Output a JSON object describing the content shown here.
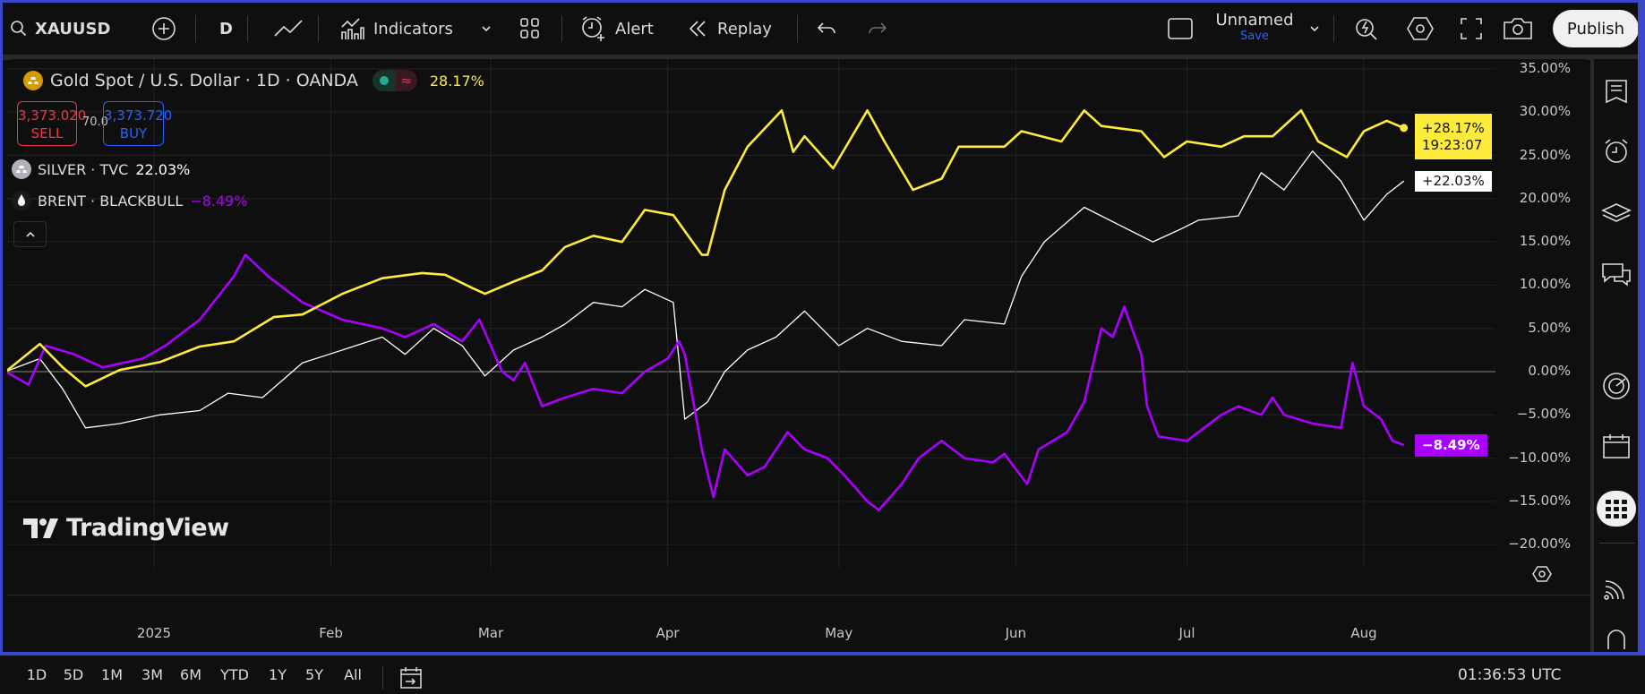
{
  "toolbar": {
    "symbol": "XAUUSD",
    "interval": "D",
    "indicators_label": "Indicators",
    "alert_label": "Alert",
    "replay_label": "Replay",
    "layout_name": "Unnamed",
    "save_label": "Save",
    "publish_label": "Publish"
  },
  "legend": {
    "main_title": "Gold Spot / U.S. Dollar · 1D · OANDA",
    "main_change": "28.17%",
    "sell_price": "3,373.020",
    "sell_label": "SELL",
    "spread": "70.0",
    "buy_price": "3,373.720",
    "buy_label": "BUY",
    "series2_name": "SILVER · TVC",
    "series2_change": "22.03%",
    "series3_name": "BRENT · BLACKBULL",
    "series3_change": "−8.49%"
  },
  "watermark": "TradingView",
  "price_labels": {
    "gold": "+28.17%",
    "gold_countdown": "19:23:07",
    "silver": "+22.03%",
    "brent": "−8.49%"
  },
  "bottom_bar": {
    "ranges": [
      "1D",
      "5D",
      "1M",
      "3M",
      "6M",
      "YTD",
      "1Y",
      "5Y",
      "All"
    ],
    "clock": "01:36:53 UTC"
  },
  "colors": {
    "gold": "#ffeb3b",
    "silver": "#ffffff",
    "brent": "#aa00ff",
    "sell": "#f23645",
    "buy": "#2962ff",
    "accent_frame": "#3b47c9"
  },
  "chart_data": {
    "type": "line",
    "y_unit": "%",
    "ylim": [
      -20,
      35
    ],
    "y_ticks": [
      "35.00%",
      "30.00%",
      "25.00%",
      "20.00%",
      "15.00%",
      "10.00%",
      "5.00%",
      "0.00%",
      "−5.00%",
      "−10.00%",
      "−15.00%",
      "−20.00%"
    ],
    "y_tick_values": [
      35,
      30,
      25,
      20,
      15,
      10,
      5,
      0,
      -5,
      -10,
      -15,
      -20
    ],
    "x_ticks": [
      {
        "label": "2025",
        "date": "2025-01-01"
      },
      {
        "label": "Feb",
        "date": "2025-02-01"
      },
      {
        "label": "Mar",
        "date": "2025-03-01"
      },
      {
        "label": "Apr",
        "date": "2025-04-01"
      },
      {
        "label": "May",
        "date": "2025-05-01"
      },
      {
        "label": "Jun",
        "date": "2025-06-01"
      },
      {
        "label": "Jul",
        "date": "2025-07-01"
      },
      {
        "label": "Aug",
        "date": "2025-08-01"
      }
    ],
    "grid": true,
    "series": [
      {
        "name": "Gold Spot / U.S. Dollar · 1D · OANDA",
        "key": "gold",
        "points": [
          [
            "2024-12-06",
            0
          ],
          [
            "2024-12-12",
            3.2
          ],
          [
            "2024-12-16",
            0.5
          ],
          [
            "2024-12-20",
            -1.7
          ],
          [
            "2024-12-26",
            0.2
          ],
          [
            "2025-01-02",
            1.1
          ],
          [
            "2025-01-09",
            2.9
          ],
          [
            "2025-01-15",
            3.5
          ],
          [
            "2025-01-22",
            6.3
          ],
          [
            "2025-01-27",
            6.6
          ],
          [
            "2025-02-03",
            9.0
          ],
          [
            "2025-02-10",
            10.8
          ],
          [
            "2025-02-17",
            11.4
          ],
          [
            "2025-02-21",
            11.2
          ],
          [
            "2025-02-26",
            9.6
          ],
          [
            "2025-02-28",
            9.0
          ],
          [
            "2025-03-05",
            10.4
          ],
          [
            "2025-03-10",
            11.7
          ],
          [
            "2025-03-14",
            14.4
          ],
          [
            "2025-03-19",
            15.7
          ],
          [
            "2025-03-24",
            15.0
          ],
          [
            "2025-03-28",
            18.7
          ],
          [
            "2025-04-02",
            18.1
          ],
          [
            "2025-04-07",
            13.5
          ],
          [
            "2025-04-08",
            13.5
          ],
          [
            "2025-04-11",
            21.0
          ],
          [
            "2025-04-15",
            26.0
          ],
          [
            "2025-04-21",
            30.2
          ],
          [
            "2025-04-23",
            25.4
          ],
          [
            "2025-04-25",
            27.2
          ],
          [
            "2025-04-30",
            23.5
          ],
          [
            "2025-05-06",
            30.2
          ],
          [
            "2025-05-09",
            26.6
          ],
          [
            "2025-05-14",
            21.0
          ],
          [
            "2025-05-19",
            22.3
          ],
          [
            "2025-05-22",
            26.0
          ],
          [
            "2025-05-27",
            26.0
          ],
          [
            "2025-05-30",
            26.0
          ],
          [
            "2025-06-02",
            27.8
          ],
          [
            "2025-06-09",
            26.6
          ],
          [
            "2025-06-13",
            30.2
          ],
          [
            "2025-06-16",
            28.4
          ],
          [
            "2025-06-23",
            27.8
          ],
          [
            "2025-06-27",
            24.8
          ],
          [
            "2025-07-01",
            26.6
          ],
          [
            "2025-07-07",
            26.0
          ],
          [
            "2025-07-11",
            27.2
          ],
          [
            "2025-07-16",
            27.2
          ],
          [
            "2025-07-21",
            30.2
          ],
          [
            "2025-07-24",
            26.6
          ],
          [
            "2025-07-29",
            24.8
          ],
          [
            "2025-08-01",
            27.8
          ],
          [
            "2025-08-05",
            29.0
          ],
          [
            "2025-08-08",
            28.17
          ]
        ]
      },
      {
        "name": "SILVER · TVC",
        "key": "silver",
        "points": [
          [
            "2024-12-06",
            0
          ],
          [
            "2024-12-12",
            1.5
          ],
          [
            "2024-12-16",
            -2.0
          ],
          [
            "2024-12-20",
            -6.5
          ],
          [
            "2024-12-26",
            -6.0
          ],
          [
            "2025-01-02",
            -5.0
          ],
          [
            "2025-01-09",
            -4.5
          ],
          [
            "2025-01-14",
            -2.5
          ],
          [
            "2025-01-20",
            -3.0
          ],
          [
            "2025-01-27",
            1.0
          ],
          [
            "2025-02-03",
            2.5
          ],
          [
            "2025-02-10",
            4.0
          ],
          [
            "2025-02-14",
            2.0
          ],
          [
            "2025-02-19",
            5.0
          ],
          [
            "2025-02-24",
            3.0
          ],
          [
            "2025-02-28",
            -0.5
          ],
          [
            "2025-03-05",
            2.5
          ],
          [
            "2025-03-10",
            4.0
          ],
          [
            "2025-03-14",
            5.5
          ],
          [
            "2025-03-19",
            8.0
          ],
          [
            "2025-03-24",
            7.5
          ],
          [
            "2025-03-28",
            9.5
          ],
          [
            "2025-04-02",
            8.0
          ],
          [
            "2025-04-04",
            -5.5
          ],
          [
            "2025-04-08",
            -3.5
          ],
          [
            "2025-04-11",
            0
          ],
          [
            "2025-04-15",
            2.5
          ],
          [
            "2025-04-20",
            4.0
          ],
          [
            "2025-04-25",
            7.0
          ],
          [
            "2025-05-01",
            3.0
          ],
          [
            "2025-05-06",
            5.0
          ],
          [
            "2025-05-12",
            3.5
          ],
          [
            "2025-05-19",
            3.0
          ],
          [
            "2025-05-23",
            6.0
          ],
          [
            "2025-05-30",
            5.5
          ],
          [
            "2025-06-02",
            11.0
          ],
          [
            "2025-06-06",
            15.0
          ],
          [
            "2025-06-13",
            19.0
          ],
          [
            "2025-06-19",
            17.0
          ],
          [
            "2025-06-25",
            15.0
          ],
          [
            "2025-06-30",
            16.5
          ],
          [
            "2025-07-03",
            17.5
          ],
          [
            "2025-07-10",
            18.0
          ],
          [
            "2025-07-14",
            23.0
          ],
          [
            "2025-07-18",
            21.0
          ],
          [
            "2025-07-23",
            25.5
          ],
          [
            "2025-07-28",
            22.0
          ],
          [
            "2025-08-01",
            17.5
          ],
          [
            "2025-08-05",
            20.5
          ],
          [
            "2025-08-08",
            22.03
          ]
        ]
      },
      {
        "name": "BRENT · BLACKBULL",
        "key": "brent",
        "points": [
          [
            "2024-12-06",
            0
          ],
          [
            "2024-12-10",
            -1.5
          ],
          [
            "2024-12-13",
            3.0
          ],
          [
            "2024-12-18",
            2.0
          ],
          [
            "2024-12-23",
            0.5
          ],
          [
            "2024-12-30",
            1.5
          ],
          [
            "2025-01-03",
            3.0
          ],
          [
            "2025-01-09",
            6.0
          ],
          [
            "2025-01-15",
            11.0
          ],
          [
            "2025-01-17",
            13.5
          ],
          [
            "2025-01-21",
            11.0
          ],
          [
            "2025-01-27",
            8.0
          ],
          [
            "2025-02-03",
            6.0
          ],
          [
            "2025-02-10",
            5.0
          ],
          [
            "2025-02-14",
            4.0
          ],
          [
            "2025-02-19",
            5.5
          ],
          [
            "2025-02-24",
            3.5
          ],
          [
            "2025-02-27",
            6.0
          ],
          [
            "2025-03-03",
            0
          ],
          [
            "2025-03-05",
            -1.0
          ],
          [
            "2025-03-07",
            1.0
          ],
          [
            "2025-03-10",
            -4.0
          ],
          [
            "2025-03-14",
            -3.0
          ],
          [
            "2025-03-19",
            -2.0
          ],
          [
            "2025-03-24",
            -2.5
          ],
          [
            "2025-03-28",
            0
          ],
          [
            "2025-04-01",
            1.5
          ],
          [
            "2025-04-03",
            3.5
          ],
          [
            "2025-04-04",
            2.0
          ],
          [
            "2025-04-07",
            -9.0
          ],
          [
            "2025-04-09",
            -14.5
          ],
          [
            "2025-04-11",
            -9.0
          ],
          [
            "2025-04-15",
            -12.0
          ],
          [
            "2025-04-18",
            -11.0
          ],
          [
            "2025-04-22",
            -7.0
          ],
          [
            "2025-04-25",
            -9.0
          ],
          [
            "2025-04-29",
            -10.0
          ],
          [
            "2025-05-02",
            -12.0
          ],
          [
            "2025-05-06",
            -15.0
          ],
          [
            "2025-05-08",
            -16.0
          ],
          [
            "2025-05-12",
            -13.0
          ],
          [
            "2025-05-15",
            -10.0
          ],
          [
            "2025-05-19",
            -8.0
          ],
          [
            "2025-05-23",
            -10.0
          ],
          [
            "2025-05-28",
            -10.5
          ],
          [
            "2025-05-30",
            -9.5
          ],
          [
            "2025-06-03",
            -13.0
          ],
          [
            "2025-06-05",
            -9.0
          ],
          [
            "2025-06-10",
            -7.0
          ],
          [
            "2025-06-13",
            -3.5
          ],
          [
            "2025-06-16",
            5.0
          ],
          [
            "2025-06-18",
            4.0
          ],
          [
            "2025-06-20",
            7.5
          ],
          [
            "2025-06-23",
            2.0
          ],
          [
            "2025-06-24",
            -4.0
          ],
          [
            "2025-06-26",
            -7.5
          ],
          [
            "2025-07-01",
            -8.0
          ],
          [
            "2025-07-07",
            -5.0
          ],
          [
            "2025-07-10",
            -4.0
          ],
          [
            "2025-07-14",
            -5.0
          ],
          [
            "2025-07-16",
            -3.0
          ],
          [
            "2025-07-18",
            -5.0
          ],
          [
            "2025-07-23",
            -6.0
          ],
          [
            "2025-07-28",
            -6.5
          ],
          [
            "2025-07-30",
            1.0
          ],
          [
            "2025-08-01",
            -4.0
          ],
          [
            "2025-08-04",
            -5.5
          ],
          [
            "2025-08-06",
            -8.0
          ],
          [
            "2025-08-08",
            -8.49
          ]
        ]
      }
    ]
  }
}
